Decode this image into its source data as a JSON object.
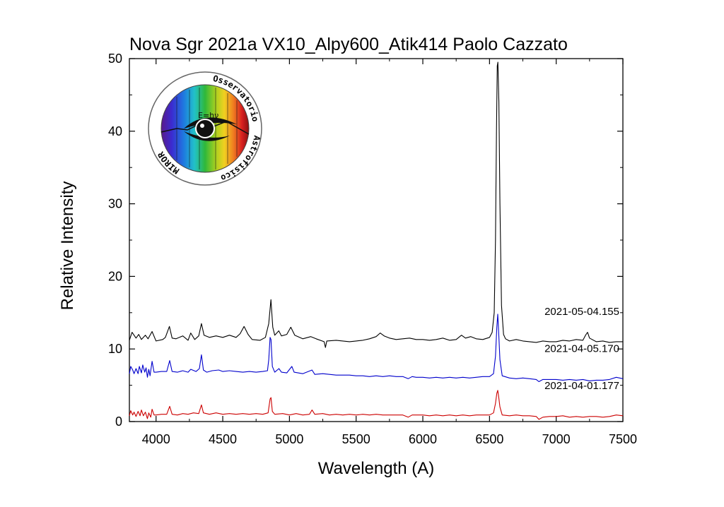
{
  "chart_data": {
    "type": "line",
    "title": "Nova Sgr 2021a VX10_Alpy600_Atik414 Paolo Cazzato",
    "xlabel": "Wavelength (A)",
    "ylabel": "Relative Intensity",
    "xlim": [
      3800,
      7500
    ],
    "ylim": [
      0,
      50
    ],
    "x_ticks": [
      4000,
      4500,
      5000,
      5500,
      6000,
      6500,
      7000,
      7500
    ],
    "y_ticks": [
      0,
      10,
      20,
      30,
      40,
      50
    ],
    "grid": false,
    "legend": "none",
    "series": [
      {
        "name": "2021-05-04.155",
        "color": "#000000",
        "points": [
          [
            3800,
            11.2
          ],
          [
            3820,
            12.3
          ],
          [
            3850,
            11.5
          ],
          [
            3870,
            12.0
          ],
          [
            3890,
            11.3
          ],
          [
            3920,
            11.9
          ],
          [
            3940,
            11.4
          ],
          [
            3970,
            12.4
          ],
          [
            4000,
            11.1
          ],
          [
            4050,
            11.3
          ],
          [
            4070,
            11.6
          ],
          [
            4100,
            13.1
          ],
          [
            4120,
            11.5
          ],
          [
            4150,
            11.4
          ],
          [
            4200,
            11.8
          ],
          [
            4240,
            11.2
          ],
          [
            4260,
            12.2
          ],
          [
            4290,
            11.3
          ],
          [
            4320,
            11.8
          ],
          [
            4340,
            13.5
          ],
          [
            4360,
            11.9
          ],
          [
            4400,
            11.6
          ],
          [
            4450,
            11.8
          ],
          [
            4500,
            11.6
          ],
          [
            4550,
            11.9
          ],
          [
            4600,
            11.6
          ],
          [
            4630,
            12.1
          ],
          [
            4660,
            13.1
          ],
          [
            4690,
            12.0
          ],
          [
            4720,
            11.3
          ],
          [
            4780,
            11.2
          ],
          [
            4820,
            11.6
          ],
          [
            4845,
            13.5
          ],
          [
            4861,
            16.8
          ],
          [
            4875,
            13.0
          ],
          [
            4890,
            11.9
          ],
          [
            4920,
            12.5
          ],
          [
            4940,
            11.8
          ],
          [
            4980,
            12.0
          ],
          [
            5010,
            13.0
          ],
          [
            5040,
            11.9
          ],
          [
            5100,
            11.4
          ],
          [
            5160,
            11.7
          ],
          [
            5200,
            11.4
          ],
          [
            5260,
            11.0
          ],
          [
            5270,
            10.2
          ],
          [
            5280,
            11.1
          ],
          [
            5350,
            11.2
          ],
          [
            5400,
            11.1
          ],
          [
            5450,
            11.0
          ],
          [
            5500,
            11.1
          ],
          [
            5550,
            11.2
          ],
          [
            5600,
            11.4
          ],
          [
            5650,
            11.7
          ],
          [
            5680,
            12.2
          ],
          [
            5710,
            11.8
          ],
          [
            5750,
            11.5
          ],
          [
            5800,
            11.3
          ],
          [
            5850,
            11.4
          ],
          [
            5900,
            11.5
          ],
          [
            5950,
            11.3
          ],
          [
            6000,
            11.3
          ],
          [
            6050,
            11.2
          ],
          [
            6100,
            11.3
          ],
          [
            6150,
            11.5
          ],
          [
            6200,
            11.2
          ],
          [
            6250,
            11.3
          ],
          [
            6290,
            11.9
          ],
          [
            6320,
            11.5
          ],
          [
            6360,
            11.7
          ],
          [
            6400,
            11.4
          ],
          [
            6450,
            11.3
          ],
          [
            6500,
            11.6
          ],
          [
            6520,
            12.3
          ],
          [
            6535,
            15.0
          ],
          [
            6545,
            25.0
          ],
          [
            6552,
            40.0
          ],
          [
            6558,
            49.0
          ],
          [
            6563,
            49.5
          ],
          [
            6570,
            44.0
          ],
          [
            6578,
            30.0
          ],
          [
            6590,
            16.0
          ],
          [
            6605,
            12.0
          ],
          [
            6620,
            11.4
          ],
          [
            6650,
            11.1
          ],
          [
            6700,
            11.3
          ],
          [
            6750,
            11.1
          ],
          [
            6800,
            11.0
          ],
          [
            6850,
            10.9
          ],
          [
            6900,
            11.1
          ],
          [
            6950,
            11.0
          ],
          [
            7000,
            11.0
          ],
          [
            7050,
            11.2
          ],
          [
            7100,
            11.1
          ],
          [
            7150,
            11.3
          ],
          [
            7200,
            11.2
          ],
          [
            7220,
            11.9
          ],
          [
            7235,
            12.3
          ],
          [
            7250,
            11.5
          ],
          [
            7300,
            11.0
          ],
          [
            7350,
            11.1
          ],
          [
            7400,
            10.9
          ],
          [
            7450,
            11.0
          ],
          [
            7500,
            11.0
          ]
        ]
      },
      {
        "name": "2021-04-05.170",
        "color": "#0000cc",
        "points": [
          [
            3800,
            6.6
          ],
          [
            3810,
            7.6
          ],
          [
            3825,
            7.1
          ],
          [
            3835,
            6.6
          ],
          [
            3850,
            7.3
          ],
          [
            3865,
            6.6
          ],
          [
            3875,
            7.6
          ],
          [
            3890,
            6.7
          ],
          [
            3900,
            7.8
          ],
          [
            3915,
            6.8
          ],
          [
            3925,
            7.4
          ],
          [
            3935,
            6.1
          ],
          [
            3945,
            7.2
          ],
          [
            3955,
            6.3
          ],
          [
            3970,
            8.3
          ],
          [
            3985,
            6.8
          ],
          [
            4000,
            6.8
          ],
          [
            4040,
            6.9
          ],
          [
            4080,
            6.9
          ],
          [
            4102,
            8.4
          ],
          [
            4120,
            6.9
          ],
          [
            4160,
            6.8
          ],
          [
            4200,
            7.0
          ],
          [
            4240,
            6.8
          ],
          [
            4260,
            7.2
          ],
          [
            4300,
            6.9
          ],
          [
            4325,
            7.3
          ],
          [
            4340,
            9.2
          ],
          [
            4355,
            7.1
          ],
          [
            4380,
            6.8
          ],
          [
            4420,
            7.0
          ],
          [
            4470,
            7.1
          ],
          [
            4500,
            6.9
          ],
          [
            4550,
            7.0
          ],
          [
            4600,
            6.9
          ],
          [
            4650,
            6.8
          ],
          [
            4700,
            6.9
          ],
          [
            4750,
            6.8
          ],
          [
            4800,
            6.9
          ],
          [
            4835,
            7.0
          ],
          [
            4845,
            8.5
          ],
          [
            4855,
            11.6
          ],
          [
            4862,
            11.3
          ],
          [
            4872,
            7.6
          ],
          [
            4890,
            6.8
          ],
          [
            4921,
            7.3
          ],
          [
            4940,
            6.8
          ],
          [
            4980,
            6.7
          ],
          [
            5018,
            7.6
          ],
          [
            5035,
            6.8
          ],
          [
            5100,
            6.6
          ],
          [
            5169,
            7.1
          ],
          [
            5190,
            6.5
          ],
          [
            5250,
            6.6
          ],
          [
            5300,
            6.5
          ],
          [
            5350,
            6.4
          ],
          [
            5400,
            6.4
          ],
          [
            5450,
            6.4
          ],
          [
            5500,
            6.3
          ],
          [
            5550,
            6.3
          ],
          [
            5600,
            6.2
          ],
          [
            5650,
            6.3
          ],
          [
            5700,
            6.2
          ],
          [
            5750,
            6.3
          ],
          [
            5800,
            6.2
          ],
          [
            5850,
            6.2
          ],
          [
            5890,
            5.9
          ],
          [
            5920,
            6.2
          ],
          [
            5950,
            6.1
          ],
          [
            6000,
            6.1
          ],
          [
            6050,
            6.0
          ],
          [
            6100,
            6.1
          ],
          [
            6150,
            6.0
          ],
          [
            6200,
            6.1
          ],
          [
            6250,
            6.0
          ],
          [
            6300,
            6.1
          ],
          [
            6350,
            6.0
          ],
          [
            6400,
            6.1
          ],
          [
            6450,
            6.2
          ],
          [
            6500,
            6.2
          ],
          [
            6530,
            6.6
          ],
          [
            6545,
            9.0
          ],
          [
            6555,
            13.0
          ],
          [
            6562,
            14.8
          ],
          [
            6568,
            12.5
          ],
          [
            6578,
            8.5
          ],
          [
            6595,
            6.3
          ],
          [
            6650,
            6.0
          ],
          [
            6700,
            5.9
          ],
          [
            6750,
            6.0
          ],
          [
            6800,
            5.9
          ],
          [
            6850,
            5.8
          ],
          [
            6870,
            5.5
          ],
          [
            6900,
            5.8
          ],
          [
            6950,
            5.8
          ],
          [
            7000,
            5.8
          ],
          [
            7050,
            5.7
          ],
          [
            7100,
            5.8
          ],
          [
            7150,
            5.7
          ],
          [
            7200,
            5.8
          ],
          [
            7250,
            5.6
          ],
          [
            7300,
            5.7
          ],
          [
            7350,
            5.7
          ],
          [
            7400,
            5.8
          ],
          [
            7450,
            6.1
          ],
          [
            7500,
            5.9
          ]
        ]
      },
      {
        "name": "2021-04-01.177",
        "color": "#cc0000",
        "points": [
          [
            3800,
            0.8
          ],
          [
            3810,
            1.5
          ],
          [
            3825,
            0.9
          ],
          [
            3835,
            1.3
          ],
          [
            3850,
            0.7
          ],
          [
            3865,
            1.4
          ],
          [
            3880,
            0.8
          ],
          [
            3890,
            1.6
          ],
          [
            3905,
            0.8
          ],
          [
            3920,
            1.3
          ],
          [
            3935,
            0.4
          ],
          [
            3945,
            1.2
          ],
          [
            3960,
            0.6
          ],
          [
            3970,
            1.7
          ],
          [
            3985,
            0.9
          ],
          [
            4000,
            0.9
          ],
          [
            4040,
            1.0
          ],
          [
            4080,
            1.0
          ],
          [
            4102,
            2.1
          ],
          [
            4120,
            1.0
          ],
          [
            4160,
            0.9
          ],
          [
            4200,
            1.1
          ],
          [
            4240,
            1.0
          ],
          [
            4280,
            1.2
          ],
          [
            4320,
            1.1
          ],
          [
            4340,
            2.3
          ],
          [
            4355,
            1.2
          ],
          [
            4400,
            1.0
          ],
          [
            4450,
            1.2
          ],
          [
            4500,
            1.0
          ],
          [
            4550,
            1.1
          ],
          [
            4600,
            1.0
          ],
          [
            4650,
            1.1
          ],
          [
            4700,
            1.0
          ],
          [
            4750,
            1.1
          ],
          [
            4800,
            1.0
          ],
          [
            4840,
            1.2
          ],
          [
            4855,
            3.1
          ],
          [
            4862,
            3.3
          ],
          [
            4872,
            1.4
          ],
          [
            4890,
            1.0
          ],
          [
            4950,
            1.1
          ],
          [
            5000,
            0.9
          ],
          [
            5050,
            1.1
          ],
          [
            5100,
            0.9
          ],
          [
            5150,
            1.0
          ],
          [
            5169,
            1.6
          ],
          [
            5190,
            1.0
          ],
          [
            5250,
            1.1
          ],
          [
            5300,
            0.9
          ],
          [
            5350,
            1.0
          ],
          [
            5400,
            0.9
          ],
          [
            5450,
            1.0
          ],
          [
            5500,
            0.9
          ],
          [
            5550,
            1.0
          ],
          [
            5600,
            0.9
          ],
          [
            5650,
            1.0
          ],
          [
            5700,
            0.9
          ],
          [
            5750,
            0.9
          ],
          [
            5800,
            0.9
          ],
          [
            5850,
            0.9
          ],
          [
            5890,
            0.6
          ],
          [
            5920,
            0.9
          ],
          [
            5950,
            0.9
          ],
          [
            6000,
            0.9
          ],
          [
            6050,
            0.8
          ],
          [
            6100,
            0.9
          ],
          [
            6150,
            0.8
          ],
          [
            6200,
            0.9
          ],
          [
            6250,
            0.8
          ],
          [
            6300,
            0.9
          ],
          [
            6350,
            0.8
          ],
          [
            6400,
            0.9
          ],
          [
            6450,
            0.9
          ],
          [
            6500,
            0.9
          ],
          [
            6530,
            1.2
          ],
          [
            6545,
            2.5
          ],
          [
            6555,
            3.9
          ],
          [
            6562,
            4.3
          ],
          [
            6568,
            3.5
          ],
          [
            6578,
            2.0
          ],
          [
            6595,
            0.9
          ],
          [
            6650,
            0.8
          ],
          [
            6700,
            0.9
          ],
          [
            6750,
            0.8
          ],
          [
            6800,
            0.8
          ],
          [
            6850,
            0.7
          ],
          [
            6870,
            0.3
          ],
          [
            6900,
            0.6
          ],
          [
            6950,
            0.7
          ],
          [
            7000,
            0.7
          ],
          [
            7050,
            0.8
          ],
          [
            7100,
            0.6
          ],
          [
            7150,
            0.7
          ],
          [
            7200,
            0.6
          ],
          [
            7250,
            0.7
          ],
          [
            7300,
            0.7
          ],
          [
            7350,
            0.6
          ],
          [
            7400,
            0.7
          ],
          [
            7450,
            0.9
          ],
          [
            7500,
            0.8
          ]
        ]
      }
    ]
  },
  "logo": {
    "top_text": "Osservatorio",
    "right_text": "Astrofisico",
    "left_text": "MIROR",
    "center_text": "E=hν"
  }
}
